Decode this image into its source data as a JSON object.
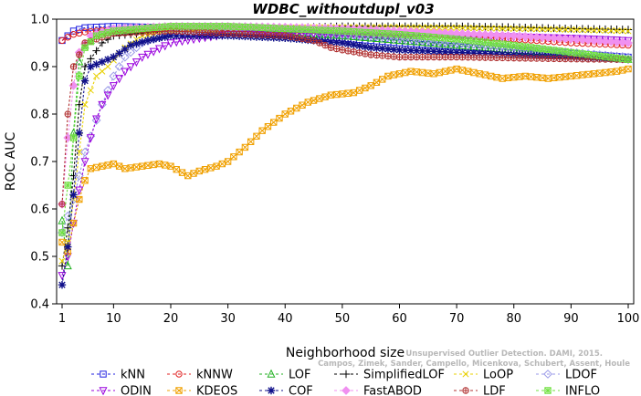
{
  "chart_data": {
    "type": "line",
    "title": "WDBC_withoutdupl_v03",
    "xlabel": "Neighborhood size",
    "ylabel": "ROC AUC",
    "xlim": [
      1,
      100
    ],
    "ylim": [
      0.4,
      1.0
    ],
    "x_ticks": [
      "1",
      "10",
      "20",
      "30",
      "40",
      "50",
      "60",
      "70",
      "80",
      "90",
      "100"
    ],
    "y_ticks": [
      "0.4",
      "0.5",
      "0.6",
      "0.7",
      "0.8",
      "0.9",
      "1.0"
    ],
    "grid": false,
    "legend_position": "bottom",
    "credit": [
      "Campos, Zimek, Sander, Campello, Micenkova, Schubert, Assent, Houle",
      "Unsupervised Outlier Detection. DAMI, 2015."
    ],
    "series": [
      {
        "name": "kNN",
        "color": "#1f1fe0",
        "marker": "square",
        "points": [
          [
            1,
            0.955
          ],
          [
            2,
            0.965
          ],
          [
            3,
            0.975
          ],
          [
            5,
            0.982
          ],
          [
            10,
            0.985
          ],
          [
            20,
            0.982
          ],
          [
            30,
            0.975
          ],
          [
            40,
            0.968
          ],
          [
            50,
            0.96
          ],
          [
            60,
            0.95
          ],
          [
            70,
            0.942
          ],
          [
            80,
            0.935
          ],
          [
            90,
            0.928
          ],
          [
            100,
            0.92
          ]
        ]
      },
      {
        "name": "kNNW",
        "color": "#e02020",
        "marker": "circle",
        "points": [
          [
            1,
            0.955
          ],
          [
            2,
            0.962
          ],
          [
            3,
            0.968
          ],
          [
            5,
            0.973
          ],
          [
            10,
            0.978
          ],
          [
            20,
            0.98
          ],
          [
            30,
            0.98
          ],
          [
            40,
            0.978
          ],
          [
            50,
            0.975
          ],
          [
            60,
            0.97
          ],
          [
            70,
            0.965
          ],
          [
            80,
            0.958
          ],
          [
            90,
            0.95
          ],
          [
            100,
            0.945
          ]
        ]
      },
      {
        "name": "LOF",
        "color": "#20b020",
        "marker": "triangle",
        "points": [
          [
            1,
            0.575
          ],
          [
            2,
            0.48
          ],
          [
            3,
            0.76
          ],
          [
            4,
            0.91
          ],
          [
            5,
            0.945
          ],
          [
            7,
            0.965
          ],
          [
            10,
            0.975
          ],
          [
            20,
            0.98
          ],
          [
            30,
            0.978
          ],
          [
            40,
            0.972
          ],
          [
            50,
            0.965
          ],
          [
            60,
            0.955
          ],
          [
            70,
            0.945
          ],
          [
            80,
            0.935
          ],
          [
            90,
            0.925
          ],
          [
            100,
            0.915
          ]
        ]
      },
      {
        "name": "SimplifiedLOF",
        "color": "#000000",
        "marker": "plus",
        "points": [
          [
            1,
            0.48
          ],
          [
            2,
            0.56
          ],
          [
            3,
            0.67
          ],
          [
            4,
            0.82
          ],
          [
            5,
            0.9
          ],
          [
            8,
            0.95
          ],
          [
            10,
            0.965
          ],
          [
            20,
            0.975
          ],
          [
            30,
            0.98
          ],
          [
            40,
            0.982
          ],
          [
            50,
            0.985
          ],
          [
            60,
            0.985
          ],
          [
            70,
            0.985
          ],
          [
            80,
            0.983
          ],
          [
            90,
            0.98
          ],
          [
            100,
            0.978
          ]
        ]
      },
      {
        "name": "LoOP",
        "color": "#e8d000",
        "marker": "x",
        "points": [
          [
            1,
            0.49
          ],
          [
            2,
            0.53
          ],
          [
            3,
            0.62
          ],
          [
            4,
            0.72
          ],
          [
            5,
            0.82
          ],
          [
            7,
            0.88
          ],
          [
            9,
            0.9
          ],
          [
            12,
            0.94
          ],
          [
            15,
            0.965
          ],
          [
            20,
            0.975
          ],
          [
            30,
            0.98
          ],
          [
            40,
            0.982
          ],
          [
            50,
            0.983
          ],
          [
            60,
            0.983
          ],
          [
            70,
            0.982
          ],
          [
            80,
            0.98
          ],
          [
            90,
            0.978
          ],
          [
            100,
            0.975
          ]
        ]
      },
      {
        "name": "LDOF",
        "color": "#9a9ae8",
        "marker": "diamond",
        "points": [
          [
            1,
            0.55
          ],
          [
            3,
            0.62
          ],
          [
            5,
            0.72
          ],
          [
            8,
            0.82
          ],
          [
            10,
            0.88
          ],
          [
            12,
            0.92
          ],
          [
            15,
            0.95
          ],
          [
            20,
            0.97
          ],
          [
            30,
            0.978
          ],
          [
            40,
            0.975
          ],
          [
            50,
            0.968
          ],
          [
            60,
            0.96
          ],
          [
            70,
            0.95
          ],
          [
            80,
            0.94
          ],
          [
            90,
            0.93
          ],
          [
            100,
            0.92
          ]
        ]
      },
      {
        "name": "ODIN",
        "color": "#9900dd",
        "marker": "triangle-down",
        "points": [
          [
            1,
            0.46
          ],
          [
            2,
            0.5
          ],
          [
            3,
            0.57
          ],
          [
            4,
            0.64
          ],
          [
            5,
            0.7
          ],
          [
            6,
            0.75
          ],
          [
            7,
            0.79
          ],
          [
            8,
            0.82
          ],
          [
            10,
            0.86
          ],
          [
            12,
            0.89
          ],
          [
            15,
            0.92
          ],
          [
            20,
            0.95
          ],
          [
            25,
            0.96
          ],
          [
            30,
            0.968
          ],
          [
            40,
            0.97
          ],
          [
            50,
            0.97
          ],
          [
            60,
            0.968
          ],
          [
            70,
            0.965
          ],
          [
            80,
            0.963
          ],
          [
            90,
            0.96
          ],
          [
            100,
            0.955
          ]
        ]
      },
      {
        "name": "KDEOS",
        "color": "#f0a000",
        "marker": "square-x",
        "points": [
          [
            1,
            0.53
          ],
          [
            2,
            0.51
          ],
          [
            3,
            0.57
          ],
          [
            4,
            0.62
          ],
          [
            5,
            0.66
          ],
          [
            6,
            0.685
          ],
          [
            8,
            0.69
          ],
          [
            10,
            0.695
          ],
          [
            12,
            0.685
          ],
          [
            15,
            0.69
          ],
          [
            18,
            0.695
          ],
          [
            20,
            0.69
          ],
          [
            23,
            0.67
          ],
          [
            25,
            0.68
          ],
          [
            28,
            0.69
          ],
          [
            30,
            0.7
          ],
          [
            33,
            0.73
          ],
          [
            36,
            0.765
          ],
          [
            40,
            0.8
          ],
          [
            44,
            0.825
          ],
          [
            48,
            0.84
          ],
          [
            52,
            0.845
          ],
          [
            55,
            0.86
          ],
          [
            58,
            0.88
          ],
          [
            62,
            0.89
          ],
          [
            66,
            0.885
          ],
          [
            70,
            0.895
          ],
          [
            74,
            0.885
          ],
          [
            78,
            0.875
          ],
          [
            82,
            0.88
          ],
          [
            86,
            0.875
          ],
          [
            90,
            0.88
          ],
          [
            94,
            0.885
          ],
          [
            98,
            0.89
          ],
          [
            100,
            0.895
          ]
        ]
      },
      {
        "name": "COF",
        "color": "#10108a",
        "marker": "asterisk",
        "points": [
          [
            1,
            0.44
          ],
          [
            2,
            0.52
          ],
          [
            3,
            0.63
          ],
          [
            4,
            0.76
          ],
          [
            5,
            0.87
          ],
          [
            6,
            0.9
          ],
          [
            8,
            0.91
          ],
          [
            10,
            0.92
          ],
          [
            13,
            0.945
          ],
          [
            16,
            0.955
          ],
          [
            20,
            0.965
          ],
          [
            30,
            0.965
          ],
          [
            40,
            0.96
          ],
          [
            45,
            0.955
          ],
          [
            50,
            0.95
          ],
          [
            55,
            0.94
          ],
          [
            60,
            0.935
          ],
          [
            70,
            0.93
          ],
          [
            80,
            0.925
          ],
          [
            90,
            0.92
          ],
          [
            100,
            0.915
          ]
        ]
      },
      {
        "name": "FastABOD",
        "color": "#f090f0",
        "marker": "diamond-filled",
        "points": [
          [
            1,
            0.61
          ],
          [
            2,
            0.75
          ],
          [
            3,
            0.86
          ],
          [
            4,
            0.93
          ],
          [
            6,
            0.965
          ],
          [
            10,
            0.98
          ],
          [
            20,
            0.985
          ],
          [
            30,
            0.985
          ],
          [
            40,
            0.983
          ],
          [
            50,
            0.98
          ],
          [
            60,
            0.975
          ],
          [
            70,
            0.97
          ],
          [
            80,
            0.965
          ],
          [
            90,
            0.958
          ],
          [
            100,
            0.95
          ]
        ]
      },
      {
        "name": "LDF",
        "color": "#b03030",
        "marker": "circle-plus",
        "points": [
          [
            1,
            0.61
          ],
          [
            2,
            0.8
          ],
          [
            3,
            0.9
          ],
          [
            5,
            0.95
          ],
          [
            10,
            0.97
          ],
          [
            20,
            0.975
          ],
          [
            30,
            0.97
          ],
          [
            40,
            0.965
          ],
          [
            45,
            0.955
          ],
          [
            48,
            0.94
          ],
          [
            50,
            0.935
          ],
          [
            55,
            0.925
          ],
          [
            60,
            0.92
          ],
          [
            70,
            0.92
          ],
          [
            80,
            0.918
          ],
          [
            90,
            0.916
          ],
          [
            100,
            0.915
          ]
        ]
      },
      {
        "name": "INFLO",
        "color": "#70e040",
        "marker": "square-star",
        "points": [
          [
            1,
            0.55
          ],
          [
            2,
            0.65
          ],
          [
            3,
            0.75
          ],
          [
            4,
            0.88
          ],
          [
            5,
            0.94
          ],
          [
            7,
            0.965
          ],
          [
            10,
            0.975
          ],
          [
            20,
            0.985
          ],
          [
            30,
            0.985
          ],
          [
            40,
            0.98
          ],
          [
            50,
            0.975
          ],
          [
            60,
            0.968
          ],
          [
            70,
            0.958
          ],
          [
            80,
            0.945
          ],
          [
            90,
            0.93
          ],
          [
            100,
            0.915
          ]
        ]
      }
    ]
  }
}
